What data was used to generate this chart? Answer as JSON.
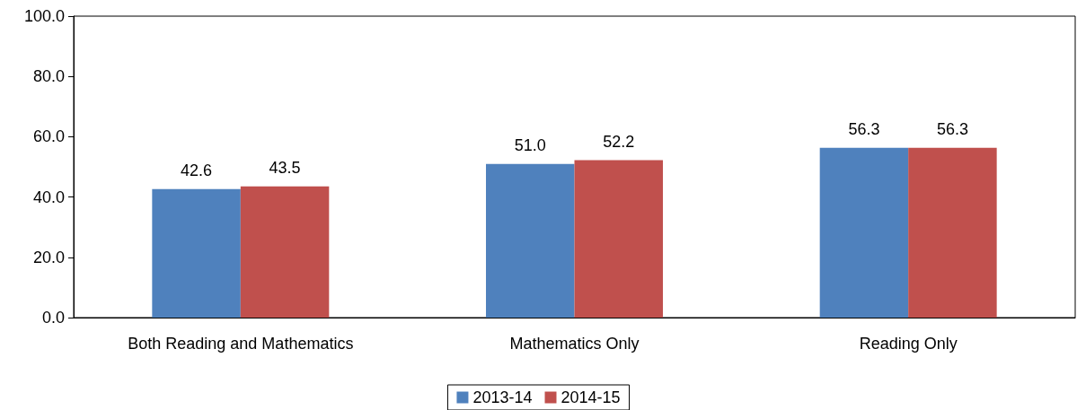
{
  "chart_data": {
    "type": "bar",
    "categories": [
      "Both Reading and Mathematics",
      "Mathematics Only",
      "Reading Only"
    ],
    "series": [
      {
        "name": "2013-14",
        "color": "#4f81bd",
        "values": [
          42.6,
          51.0,
          56.3
        ],
        "value_labels": [
          "42.6",
          "51.0",
          "56.3"
        ]
      },
      {
        "name": "2014-15",
        "color": "#c0504d",
        "values": [
          43.5,
          52.2,
          56.3
        ],
        "value_labels": [
          "43.5",
          "52.2",
          "56.3"
        ]
      }
    ],
    "ylim": [
      0,
      100
    ],
    "yticks": [
      {
        "value": 0,
        "label": "0.0"
      },
      {
        "value": 20,
        "label": "20.0"
      },
      {
        "value": 40,
        "label": "40.0"
      },
      {
        "value": 60,
        "label": "60.0"
      },
      {
        "value": 80,
        "label": "80.0"
      },
      {
        "value": 100,
        "label": "100.0"
      }
    ],
    "grid": false,
    "legend": "bottom"
  }
}
